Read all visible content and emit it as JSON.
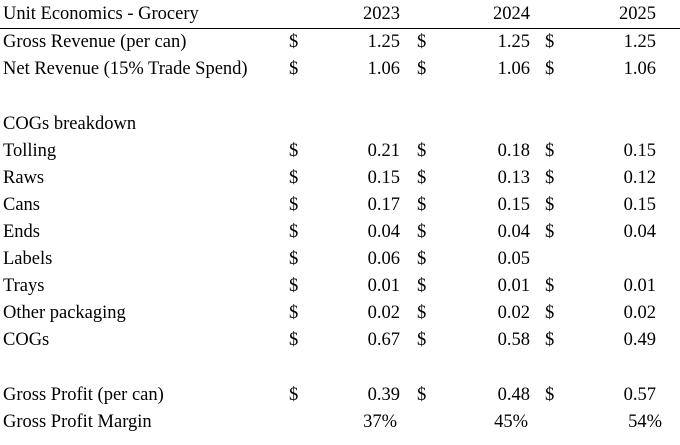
{
  "title": "Unit Economics - Grocery",
  "years": [
    "2023",
    "2024",
    "2025"
  ],
  "currency_symbol": "$",
  "rows": {
    "gross_revenue": {
      "label": "Gross Revenue (per can)",
      "values": [
        "1.25",
        "1.25",
        "1.25"
      ]
    },
    "net_revenue": {
      "label": "Net Revenue (15% Trade Spend)",
      "values": [
        "1.06",
        "1.06",
        "1.06"
      ]
    },
    "cogs_header": {
      "label": "COGs breakdown"
    },
    "tolling": {
      "label": "Tolling",
      "values": [
        "0.21",
        "0.18",
        "0.15"
      ]
    },
    "raws": {
      "label": "Raws",
      "values": [
        "0.15",
        "0.13",
        "0.12"
      ]
    },
    "cans": {
      "label": "Cans",
      "values": [
        "0.17",
        "0.15",
        "0.15"
      ]
    },
    "ends": {
      "label": "Ends",
      "values": [
        "0.04",
        "0.04",
        "0.04"
      ]
    },
    "labels": {
      "label": "Labels",
      "values": [
        "0.06",
        "0.05",
        ""
      ]
    },
    "trays": {
      "label": "Trays",
      "values": [
        "0.01",
        "0.01",
        "0.01"
      ]
    },
    "other_packaging": {
      "label": "Other packaging",
      "values": [
        "0.02",
        "0.02",
        "0.02"
      ]
    },
    "cogs": {
      "label": "COGs",
      "values": [
        "0.67",
        "0.58",
        "0.49"
      ]
    },
    "gross_profit": {
      "label": "Gross Profit (per can)",
      "values": [
        "0.39",
        "0.48",
        "0.57"
      ]
    },
    "gross_profit_margin": {
      "label": "Gross Profit Margin",
      "values": [
        "37%",
        "45%",
        "54%"
      ]
    }
  }
}
